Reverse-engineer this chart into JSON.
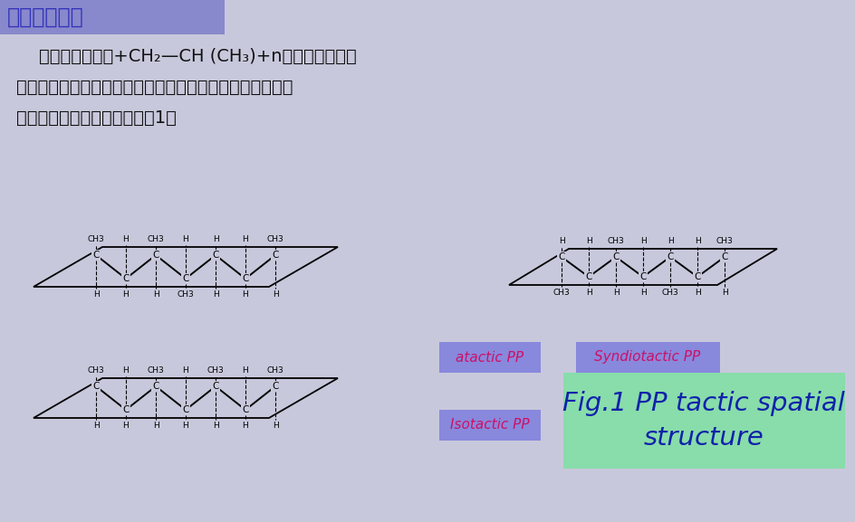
{
  "title": "聚丙烯的结构",
  "title_bg": "#8888cc",
  "title_color": "#3333bb",
  "bg_color": "#c8c8dc",
  "body_line1": "    聚丙烯的结构为+CH₂—CH (CH₃)+n，主链上碳原子",
  "body_line2": "交替存在着甲基。如果把聚丙烯分子主链拉成平面锯齿形，",
  "body_line3": "则其有规立构构型可表示为图1。",
  "label_atactic": "atactic PP",
  "label_syndiotactic": "Syndiotactic PP",
  "label_isotactic": "Isotactic PP",
  "label_fig": "Fig.1 PP tactic spatial\nstructure",
  "label_bg_purple": "#8888dd",
  "label_text_color": "#cc1166",
  "fig_label_bg": "#88ddaa",
  "fig_label_color": "#1122aa",
  "struct1_top": [
    "CH3",
    "H",
    "CH3",
    "H",
    "H",
    "H",
    "CH3"
  ],
  "struct1_bot": [
    "H",
    "H",
    "H",
    "CH3",
    "H",
    "H",
    "H"
  ],
  "struct2_top": [
    "CH3",
    "H",
    "CH3",
    "H",
    "CH3",
    "H",
    "CH3"
  ],
  "struct2_bot": [
    "H",
    "H",
    "H",
    "H",
    "H",
    "H",
    "H"
  ],
  "struct3_top": [
    "H",
    "H",
    "CH3",
    "H",
    "H",
    "H",
    "CH3"
  ],
  "struct3_bot": [
    "CH3",
    "H",
    "H",
    "H",
    "CH3",
    "H",
    "H"
  ]
}
